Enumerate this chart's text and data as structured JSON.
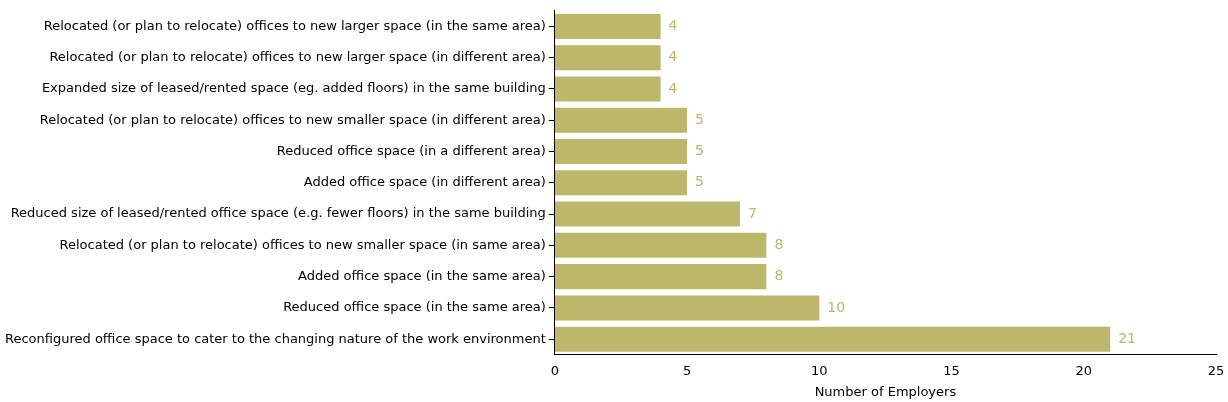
{
  "chart_data": {
    "type": "bar",
    "orientation": "horizontal",
    "categories": [
      "Relocated (or plan to relocate) offices to new larger space (in the same area)",
      "Relocated (or plan to relocate) offices to new larger space (in different area)",
      "Expanded size of leased/rented space (eg. added floors) in the same building",
      "Relocated (or plan to relocate) offices to new smaller space (in different area)",
      "Reduced office space (in a different area)",
      "Added office space (in different area)",
      "Reduced size of leased/rented office space (e.g. fewer floors) in the same building",
      "Relocated (or plan to relocate) offices to new smaller space (in same area)",
      "Added office space (in the same area)",
      "Reduced office space (in the same area)",
      "Reconfigured office space to cater to the changing nature of the work environment"
    ],
    "values": [
      4,
      4,
      4,
      5,
      5,
      5,
      7,
      8,
      8,
      10,
      21
    ],
    "color": "#bdb76b",
    "xlabel": "Number of Employers",
    "xlim": [
      0,
      25
    ],
    "xticks": [
      0,
      5,
      10,
      15,
      20,
      25
    ],
    "data_labels": true,
    "grid": false,
    "legend": false
  }
}
